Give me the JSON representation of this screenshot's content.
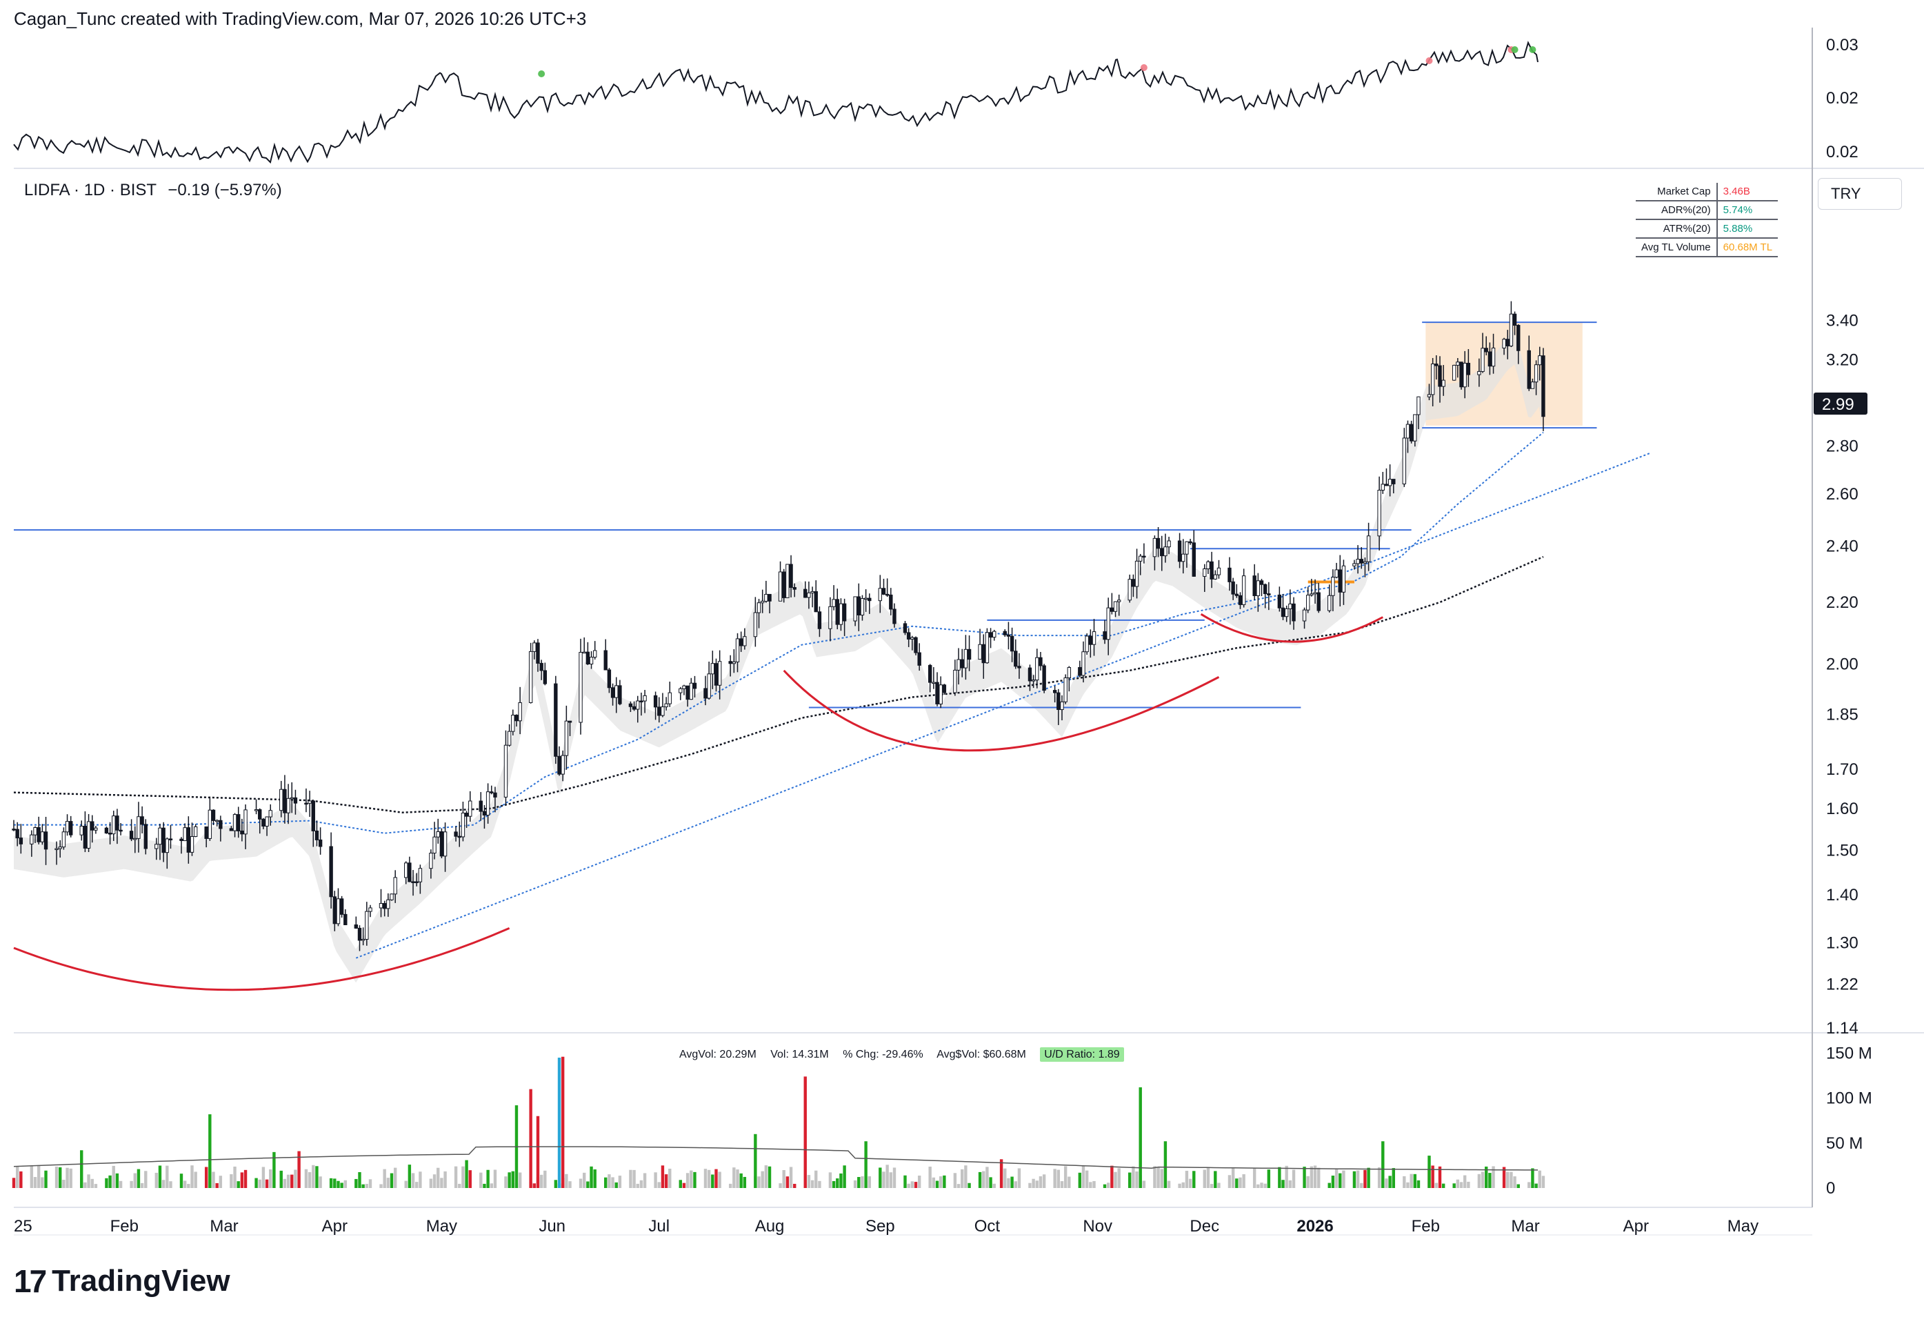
{
  "header": {
    "attribution": "Cagan_Tunc created with TradingView.com, Mar 07, 2026 10:26 UTC+3"
  },
  "symbol": {
    "info": "LIDFA · 1D · BIST",
    "change": "−0.19 (−5.97%)"
  },
  "currency_label": "TRY",
  "stats": [
    {
      "label": "Market Cap",
      "value": "3.46B",
      "color": "#f23645"
    },
    {
      "label": "ADR%(20)",
      "value": "5.74%",
      "color": "#089981"
    },
    {
      "label": "ATR%(20)",
      "value": "5.88%",
      "color": "#089981"
    },
    {
      "label": "Avg TL Volume",
      "value": "60.68M TL",
      "color": "#f7a21b"
    }
  ],
  "volume_legend": {
    "avgvol": "AvgVol: 20.29M",
    "vol": "Vol: 14.31M",
    "chg": "% Chg: -29.46%",
    "avgdollar": "Avg$Vol: $60.68M",
    "ud": "U/D Ratio: 1.89"
  },
  "brand": {
    "name": "TradingView"
  },
  "colors": {
    "up": "#1fa81f",
    "down": "#d9202f",
    "neutral": "#c3c3c3",
    "highlight": "#2aa7d8",
    "level": "#3d6fdc",
    "arc": "#d9202f",
    "ma_band": "#e3e3e3",
    "ma_band_down": "#f8d2d2",
    "box": "#fbe3c9"
  },
  "chart_data": [
    {
      "panel": "indicator",
      "type": "line",
      "y_ticks": [
        "0.03",
        "0.02",
        "0.02"
      ],
      "markers": [
        {
          "date": "2025-05-29",
          "color": "green"
        },
        {
          "date": "2025-11-14",
          "color": "red"
        },
        {
          "date": "2026-02-02",
          "color": "red"
        },
        {
          "date": "2026-02-25",
          "color": "red"
        },
        {
          "date": "2026-02-26",
          "color": "green"
        },
        {
          "date": "2026-03-03",
          "color": "green"
        }
      ]
    },
    {
      "panel": "price",
      "type": "candlestick",
      "scale": "log",
      "ylim": [
        1.14,
        3.7
      ],
      "y_ticks": [
        3.4,
        3.2,
        2.8,
        2.6,
        2.4,
        2.2,
        2.0,
        1.85,
        1.7,
        1.6,
        1.5,
        1.4,
        1.3,
        1.22,
        1.14
      ],
      "last_price": "2.99",
      "x_ticks": [
        "25",
        "Feb",
        "Mar",
        "Apr",
        "May",
        "Jun",
        "Jul",
        "Aug",
        "Sep",
        "Oct",
        "Nov",
        "Dec",
        "2026",
        "Feb",
        "Mar",
        "Apr",
        "May"
      ],
      "close_path": [
        [
          "2025-01-01",
          1.55
        ],
        [
          "2025-01-15",
          1.53
        ],
        [
          "2025-02-01",
          1.55
        ],
        [
          "2025-02-20",
          1.52
        ],
        [
          "2025-02-25",
          1.57
        ],
        [
          "2025-03-10",
          1.58
        ],
        [
          "2025-03-20",
          1.63
        ],
        [
          "2025-03-25",
          1.58
        ],
        [
          "2025-04-01",
          1.37
        ],
        [
          "2025-04-07",
          1.3
        ],
        [
          "2025-04-15",
          1.4
        ],
        [
          "2025-04-25",
          1.47
        ],
        [
          "2025-05-05",
          1.55
        ],
        [
          "2025-05-15",
          1.63
        ],
        [
          "2025-05-20",
          1.77
        ],
        [
          "2025-05-27",
          2.07
        ],
        [
          "2025-06-03",
          1.73
        ],
        [
          "2025-06-10",
          2.03
        ],
        [
          "2025-06-20",
          1.92
        ],
        [
          "2025-07-01",
          1.87
        ],
        [
          "2025-07-10",
          1.92
        ],
        [
          "2025-07-20",
          1.98
        ],
        [
          "2025-07-28",
          2.22
        ],
        [
          "2025-08-05",
          2.27
        ],
        [
          "2025-08-10",
          2.3
        ],
        [
          "2025-08-14",
          2.15
        ],
        [
          "2025-08-25",
          2.17
        ],
        [
          "2025-09-01",
          2.22
        ],
        [
          "2025-09-10",
          2.1
        ],
        [
          "2025-09-17",
          1.88
        ],
        [
          "2025-09-25",
          2.02
        ],
        [
          "2025-10-05",
          2.07
        ],
        [
          "2025-10-15",
          1.98
        ],
        [
          "2025-10-22",
          1.9
        ],
        [
          "2025-10-28",
          2.03
        ],
        [
          "2025-11-05",
          2.15
        ],
        [
          "2025-11-12",
          2.32
        ],
        [
          "2025-11-17",
          2.42
        ],
        [
          "2025-11-22",
          2.4
        ],
        [
          "2025-12-01",
          2.32
        ],
        [
          "2025-12-10",
          2.25
        ],
        [
          "2025-12-20",
          2.2
        ],
        [
          "2025-12-27",
          2.19
        ],
        [
          "2026-01-03",
          2.23
        ],
        [
          "2026-01-10",
          2.3
        ],
        [
          "2026-01-15",
          2.4
        ],
        [
          "2026-01-20",
          2.6
        ],
        [
          "2026-01-27",
          2.83
        ],
        [
          "2026-02-01",
          3.1
        ],
        [
          "2026-02-10",
          3.12
        ],
        [
          "2026-02-18",
          3.2
        ],
        [
          "2026-02-24",
          3.35
        ],
        [
          "2026-02-26",
          3.38
        ],
        [
          "2026-03-02",
          3.1
        ],
        [
          "2026-03-05",
          3.17
        ],
        [
          "2026-03-06",
          2.99
        ]
      ],
      "levels": [
        {
          "price": 2.46,
          "from": "2025-01-01",
          "to": "2026-01-28"
        },
        {
          "price": 2.39,
          "from": "2025-11-27",
          "to": "2026-01-22"
        },
        {
          "price": 2.14,
          "from": "2025-10-01",
          "to": "2025-12-01"
        },
        {
          "price": 1.87,
          "from": "2025-08-12",
          "to": "2025-12-28"
        },
        {
          "price": 3.39,
          "from": "2026-01-31",
          "to": "2026-03-21"
        },
        {
          "price": 2.88,
          "from": "2026-01-31",
          "to": "2026-03-21"
        }
      ],
      "box": {
        "from": "2026-02-01",
        "to": "2026-03-17",
        "low": 2.89,
        "high": 3.39
      },
      "orange_level": {
        "price": 2.27,
        "from": "2025-12-30",
        "to": "2026-01-12"
      },
      "trendline": {
        "from": [
          "2025-04-07",
          1.27
        ],
        "to": [
          "2026-04-05",
          2.77
        ]
      },
      "arcs": [
        {
          "from": [
            "2025-01-01",
            1.29
          ],
          "mid": [
            "2025-03-10",
            1.21
          ],
          "to": [
            "2025-05-20",
            1.33
          ]
        },
        {
          "from": [
            "2025-08-05",
            1.98
          ],
          "mid": [
            "2025-09-25",
            1.75
          ],
          "to": [
            "2025-12-05",
            1.96
          ]
        },
        {
          "from": [
            "2025-11-30",
            2.16
          ],
          "mid": [
            "2025-12-25",
            2.07
          ],
          "to": [
            "2026-01-20",
            2.15
          ]
        }
      ],
      "sma_black": [
        [
          "2025-01-01",
          1.64
        ],
        [
          "2025-02-15",
          1.63
        ],
        [
          "2025-03-25",
          1.62
        ],
        [
          "2025-04-20",
          1.59
        ],
        [
          "2025-05-15",
          1.6
        ],
        [
          "2025-06-10",
          1.66
        ],
        [
          "2025-07-10",
          1.74
        ],
        [
          "2025-08-10",
          1.84
        ],
        [
          "2025-09-10",
          1.9
        ],
        [
          "2025-10-10",
          1.93
        ],
        [
          "2025-11-10",
          1.98
        ],
        [
          "2025-12-10",
          2.05
        ],
        [
          "2026-01-10",
          2.1
        ],
        [
          "2026-02-05",
          2.2
        ],
        [
          "2026-03-06",
          2.36
        ]
      ],
      "ema_blue": [
        [
          "2025-01-01",
          1.56
        ],
        [
          "2025-02-15",
          1.56
        ],
        [
          "2025-03-25",
          1.57
        ],
        [
          "2025-04-15",
          1.54
        ],
        [
          "2025-05-10",
          1.56
        ],
        [
          "2025-05-30",
          1.68
        ],
        [
          "2025-06-25",
          1.78
        ],
        [
          "2025-07-20",
          1.93
        ],
        [
          "2025-08-10",
          2.06
        ],
        [
          "2025-09-10",
          2.12
        ],
        [
          "2025-10-10",
          2.09
        ],
        [
          "2025-11-05",
          2.09
        ],
        [
          "2025-11-25",
          2.16
        ],
        [
          "2025-12-20",
          2.22
        ],
        [
          "2026-01-10",
          2.26
        ],
        [
          "2026-01-25",
          2.36
        ],
        [
          "2026-02-10",
          2.56
        ],
        [
          "2026-03-06",
          2.86
        ]
      ],
      "volume": {
        "ylim": [
          0,
          155
        ],
        "y_ticks": [
          "150 M",
          "100 M",
          "50 M",
          "0"
        ],
        "bars": [
          [
            "2025-01-20",
            42,
            "up"
          ],
          [
            "2025-02-25",
            82,
            "up"
          ],
          [
            "2025-03-15",
            40,
            "up"
          ],
          [
            "2025-03-22",
            41,
            "down"
          ],
          [
            "2025-05-08",
            31,
            "up"
          ],
          [
            "2025-05-22",
            92,
            "up"
          ],
          [
            "2025-05-26",
            110,
            "down"
          ],
          [
            "2025-05-28",
            80,
            "down"
          ],
          [
            "2025-06-03",
            145,
            "highlight"
          ],
          [
            "2025-06-04",
            146,
            "down"
          ],
          [
            "2025-07-28",
            60,
            "up"
          ],
          [
            "2025-08-11",
            124,
            "down"
          ],
          [
            "2025-08-28",
            52,
            "up"
          ],
          [
            "2025-10-05",
            32,
            "down"
          ],
          [
            "2025-11-13",
            112,
            "up"
          ],
          [
            "2025-11-20",
            52,
            "up"
          ],
          [
            "2026-01-20",
            52,
            "up"
          ],
          [
            "2026-02-02",
            36,
            "up"
          ]
        ]
      }
    }
  ]
}
